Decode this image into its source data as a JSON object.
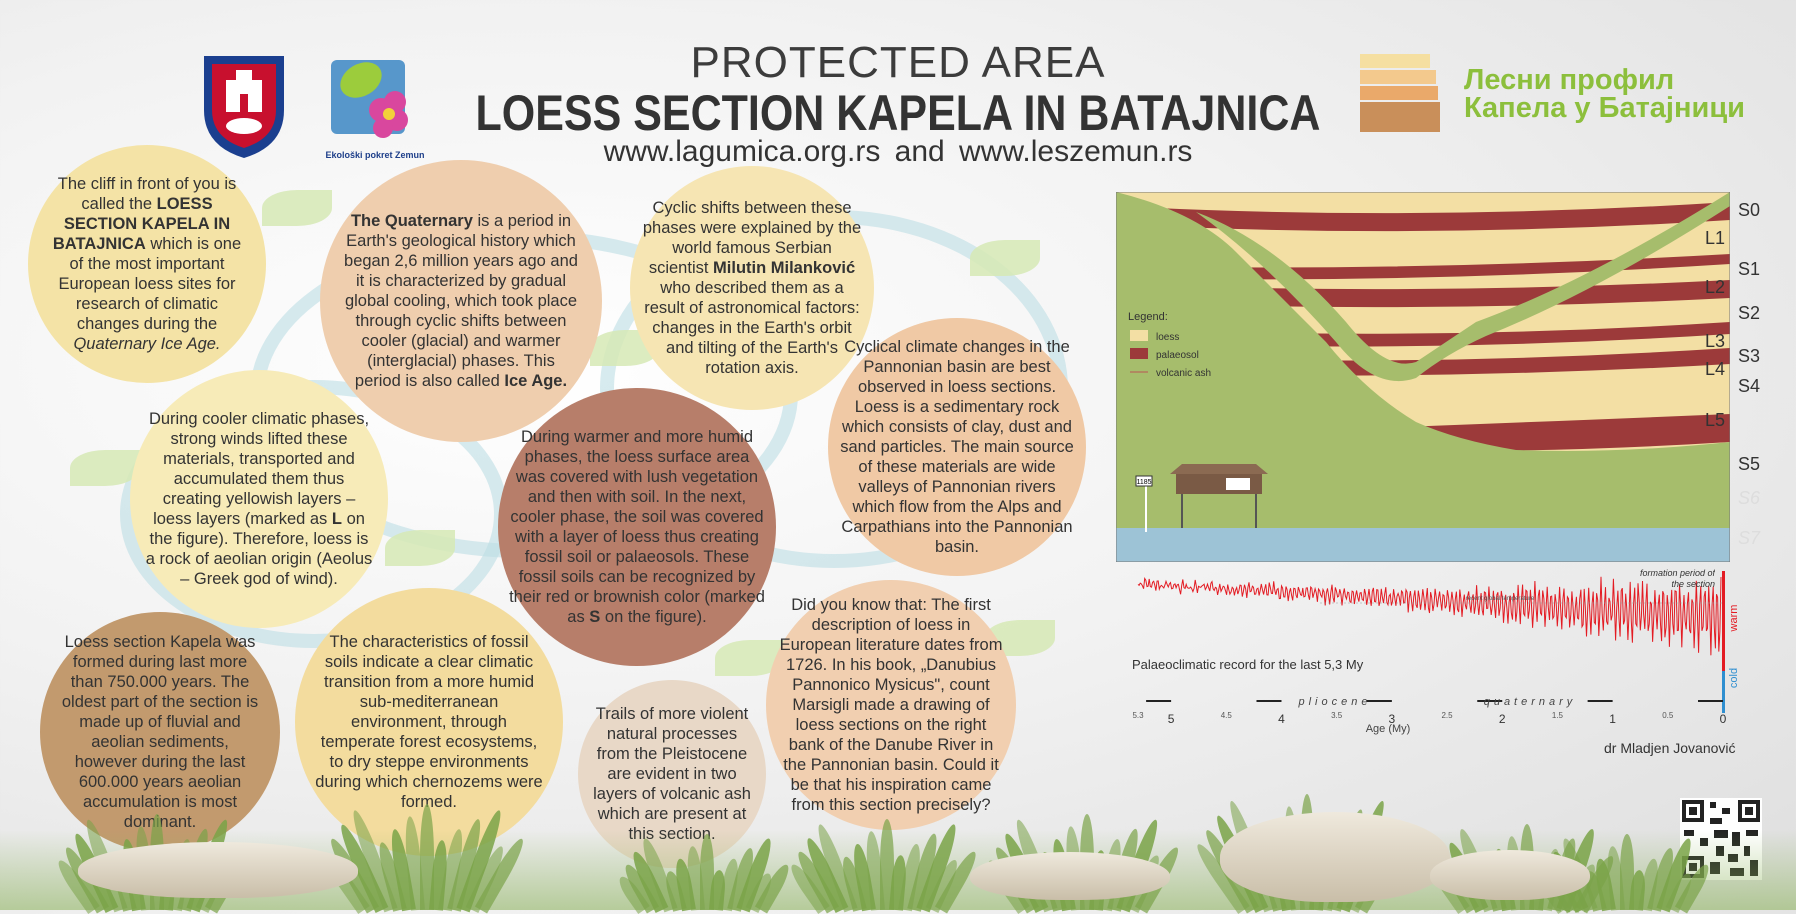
{
  "header": {
    "line1": "PROTECTED AREA",
    "line2": "LOESS SECTION KAPELA IN BATAJNICA",
    "line3": "www.lagumica.org.rs   and  www.leszemun.rs"
  },
  "logos": {
    "eko_label": "Ekološki pokret Zemun",
    "cyr_line1": "Лесни профил",
    "cyr_line2": "Капела у Батајници"
  },
  "colors": {
    "loess": "#f3dfa4",
    "palaeosol": "#9c3a3a",
    "vegetation": "#a6bd6c",
    "water": "#9dc3d6",
    "signal": "#e31b23"
  },
  "circles": {
    "c1": "The cliff in front of you is called the <b>LOESS SECTION KAPELA IN BATAJNICA</b> which is one of the most important European loess sites for research of climatic changes during the <i>Quaternary Ice Age.</i>",
    "c2": "<b>The Quaternary</b> is a period in Earth's geological history which began 2,6 million years ago and it is characterized by gradual global cooling, which took place through cyclic shifts between cooler (glacial) and warmer (interglacial) phases. This period is also called <b>Ice Age.</b>",
    "c3": "Cyclic shifts between these phases were explained by the world famous Serbian scientist <b>Milutin Milanković</b> who described them as a result of astronomical factors: changes in the Earth's orbit and tilting of the Earth's rotation axis.",
    "c4": "During cooler climatic phases, strong winds lifted these materials, transported and accumulated them thus creating yellowish layers – loess layers (marked as <b>L</b> on the figure). Therefore, loess is a rock of aeolian origin (Aeolus – Greek god of wind).",
    "c5": "During warmer and more humid phases, the loess surface area was covered with lush vegetation and then with soil. In the next, cooler phase, the soil was covered with a layer of loess thus creating fossil soil or palaeosols. These fossil soils can be recognized by their red or brownish color (marked as <b>S</b> on the figure).",
    "c6": "Cyclical climate changes in the Pannonian basin are best observed in loess sections. Loess is a sedimentary rock which consists of clay, dust and sand particles. The main source of these materials are wide valleys of Pannonian rivers which flow from the Alps and Carpathians into the Pannonian basin.",
    "c7": "Loess section Kapela was formed during last more than 750.000 years. The oldest part of the section is made up of fluvial and aeolian sediments, however during the last 600.000 years aeolian accumulation is most dominant.",
    "c8": "The characteristics of fossil soils indicate a clear climatic transition from a more humid sub-mediterranean environment, through temperate forest ecosystems, to dry steppe environments during which chernozems were formed.",
    "c9": "Trails of more violent natural processes from the Pleistocene are evident in two layers of volcanic ash which are present at this section.",
    "c10": "Did you know that: The first description of loess in European literature dates from 1726. In his book, „Danubius Pannonico Mysicus\", count Marsigli made a drawing of loess sections on the right bank of the Danube River in the Pannonian basin. Could it be that his inspiration came from this section precisely?"
  },
  "section_figure": {
    "layer_labels": [
      "S0",
      "L1",
      "S1",
      "L2",
      "S2",
      "L3",
      "S3",
      "L4",
      "S4",
      "L5",
      "S5",
      "S6",
      "S7"
    ],
    "legend": {
      "title": "Legend:",
      "items": [
        "loess",
        "palaeosol",
        "volcanic ash"
      ]
    },
    "sign": "1185"
  },
  "chart_data": {
    "type": "line",
    "title": "Palaeoclimatic record for the last 5,3 My",
    "xlabel": "Age (My)",
    "x_ticks_major": [
      "5",
      "4",
      "3",
      "2",
      "1",
      "0"
    ],
    "x_ticks_minor": [
      "5.3",
      "4.5",
      "3.5",
      "2.5",
      "1.5",
      "0.5"
    ],
    "xlim": [
      5.3,
      0
    ],
    "epochs": [
      "pliocene",
      "quaternary"
    ],
    "annotations": [
      "formation period of the section",
      "recent global temperature"
    ],
    "y_labels": [
      "warm",
      "cold"
    ]
  },
  "author": "dr Mladjen Jovanović"
}
